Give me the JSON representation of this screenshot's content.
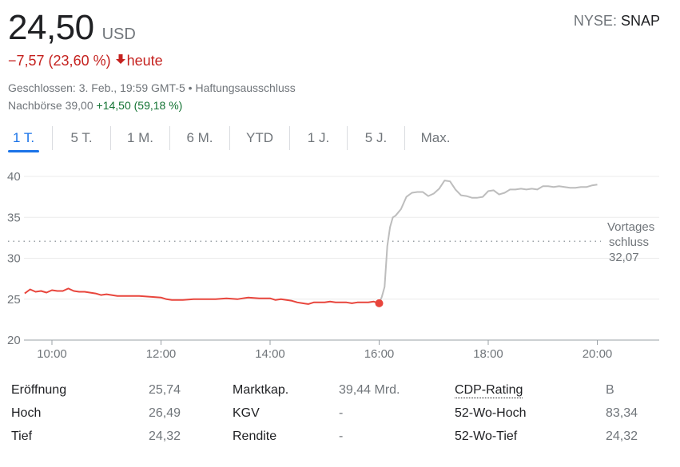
{
  "header": {
    "price": "24,50",
    "currency": "USD",
    "exchange": "NYSE",
    "symbol": "SNAP",
    "change": "−7,57 (23,60 %)",
    "change_period": "heute",
    "change_color": "#c5221f",
    "closed_text": "Geschlossen: 3. Feb., 19:59 GMT-5 • ",
    "disclaimer_link": "Haftungsausschluss",
    "after_hours_label": "Nachbörse 39,00",
    "after_hours_change": "+14,50 (59,18 %)",
    "positive_color": "#137333"
  },
  "tabs": [
    {
      "label": "1 T.",
      "active": true
    },
    {
      "label": "5 T.",
      "active": false
    },
    {
      "label": "1 M.",
      "active": false
    },
    {
      "label": "6 M.",
      "active": false
    },
    {
      "label": "YTD",
      "active": false
    },
    {
      "label": "1 J.",
      "active": false
    },
    {
      "label": "5 J.",
      "active": false
    },
    {
      "label": "Max.",
      "active": false
    }
  ],
  "chart_data": {
    "type": "line",
    "x_ticks": [
      "10:00",
      "12:00",
      "14:00",
      "16:00",
      "18:00",
      "20:00"
    ],
    "y_ticks": [
      "40",
      "35",
      "30",
      "25",
      "20"
    ],
    "ylim": [
      20,
      41
    ],
    "grid": true,
    "previous_close_label": [
      "Vortages",
      "schluss"
    ],
    "previous_close_value_text": "32,07",
    "previous_close": 32.07,
    "regular_color": "#e8453c",
    "after_hours_color": "#bdbdbd",
    "series": [
      {
        "session": "regular",
        "x": [
          9.5,
          9.6,
          9.7,
          9.8,
          9.9,
          10.0,
          10.1,
          10.2,
          10.3,
          10.4,
          10.5,
          10.6,
          10.8,
          10.9,
          11.0,
          11.2,
          11.4,
          11.6,
          11.8,
          12.0,
          12.1,
          12.2,
          12.3,
          12.4,
          12.6,
          12.8,
          13.0,
          13.2,
          13.4,
          13.5,
          13.6,
          13.8,
          14.0,
          14.1,
          14.2,
          14.4,
          14.5,
          14.6,
          14.7,
          14.8,
          14.9,
          15.0,
          15.1,
          15.2,
          15.4,
          15.5,
          15.6,
          15.8,
          15.9,
          16.0
        ],
        "y": [
          25.7,
          26.2,
          25.9,
          26.0,
          25.8,
          26.1,
          26.0,
          26.0,
          26.3,
          26.0,
          25.9,
          25.9,
          25.7,
          25.5,
          25.6,
          25.4,
          25.4,
          25.4,
          25.3,
          25.2,
          25.0,
          24.9,
          24.9,
          24.9,
          25.0,
          25.0,
          25.0,
          25.1,
          25.0,
          25.1,
          25.2,
          25.1,
          25.1,
          24.9,
          25.0,
          24.8,
          24.6,
          24.5,
          24.4,
          24.6,
          24.6,
          24.6,
          24.7,
          24.6,
          24.6,
          24.5,
          24.6,
          24.6,
          24.7,
          24.5
        ]
      },
      {
        "session": "after-hours",
        "x": [
          16.0,
          16.05,
          16.1,
          16.15,
          16.2,
          16.25,
          16.3,
          16.4,
          16.5,
          16.6,
          16.7,
          16.8,
          16.9,
          17.0,
          17.1,
          17.2,
          17.3,
          17.4,
          17.5,
          17.6,
          17.7,
          17.8,
          17.9,
          18.0,
          18.1,
          18.2,
          18.3,
          18.4,
          18.5,
          18.6,
          18.7,
          18.8,
          18.9,
          19.0,
          19.1,
          19.2,
          19.3,
          19.4,
          19.5,
          19.6,
          19.7,
          19.8,
          19.9,
          20.0
        ],
        "y": [
          24.5,
          25.3,
          26.5,
          31.5,
          33.8,
          35.0,
          35.2,
          36.0,
          37.5,
          38.0,
          38.1,
          38.1,
          37.6,
          37.9,
          38.5,
          39.5,
          39.4,
          38.4,
          37.7,
          37.6,
          37.4,
          37.4,
          37.5,
          38.2,
          38.3,
          37.8,
          38.0,
          38.4,
          38.4,
          38.5,
          38.4,
          38.5,
          38.4,
          38.8,
          38.8,
          38.7,
          38.8,
          38.7,
          38.6,
          38.6,
          38.7,
          38.7,
          38.9,
          39.0
        ]
      }
    ],
    "last_regular_point": {
      "x": 16.0,
      "y": 24.5
    }
  },
  "stats": {
    "rows": [
      {
        "c1_label": "Eröffnung",
        "c1_val": "25,74",
        "c2_label": "Marktkap.",
        "c2_val": "39,44 Mrd.",
        "c3_label": "CDP-Rating",
        "c3_val": "B"
      },
      {
        "c1_label": "Hoch",
        "c1_val": "26,49",
        "c2_label": "KGV",
        "c2_val": "-",
        "c3_label": "52-Wo-Hoch",
        "c3_val": "83,34"
      },
      {
        "c1_label": "Tief",
        "c1_val": "24,32",
        "c2_label": "Rendite",
        "c2_val": "-",
        "c3_label": "52-Wo-Tief",
        "c3_val": "24,32"
      }
    ]
  }
}
